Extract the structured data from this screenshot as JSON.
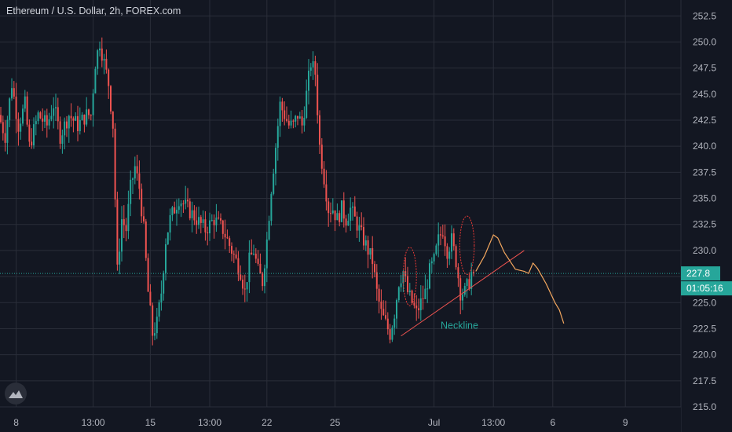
{
  "header": {
    "title": "Ethereum / U.S. Dollar, 2h, FOREX.com"
  },
  "colors": {
    "background": "#131722",
    "grid": "#2a2e39",
    "up": "#26a69a",
    "down": "#ef5350",
    "price_line": "#26a69a",
    "drawing_red": "#e53935",
    "drawing_orange": "#f5a85f",
    "text": "#b2b5be"
  },
  "logo": {
    "icon": "tradingview-logo-icon"
  },
  "chart_data": {
    "type": "candlestick",
    "title": "Ethereum / U.S. Dollar, 2h, FOREX.com",
    "ylim": [
      215.0,
      253.5
    ],
    "y_ticks": [
      {
        "value": 252.5,
        "label": "252.5"
      },
      {
        "value": 250.0,
        "label": "250.0"
      },
      {
        "value": 247.5,
        "label": "247.5"
      },
      {
        "value": 245.0,
        "label": "245.0"
      },
      {
        "value": 242.5,
        "label": "242.5"
      },
      {
        "value": 240.0,
        "label": "240.0"
      },
      {
        "value": 237.5,
        "label": "237.5"
      },
      {
        "value": 235.0,
        "label": "235.0"
      },
      {
        "value": 232.5,
        "label": "232.5"
      },
      {
        "value": 230.0,
        "label": "230.0"
      },
      {
        "value": 227.5,
        "label": "227.5"
      },
      {
        "value": 225.0,
        "label": "225.0"
      },
      {
        "value": 222.5,
        "label": "222.5"
      },
      {
        "value": 220.0,
        "label": "220.0"
      },
      {
        "value": 217.5,
        "label": "217.5"
      },
      {
        "value": 215.0,
        "label": "215.0"
      }
    ],
    "x_ticks": [
      {
        "bar": 7,
        "label": "8"
      },
      {
        "bar": 42,
        "label": "13:00"
      },
      {
        "bar": 68,
        "label": "15"
      },
      {
        "bar": 95,
        "label": "13:00"
      },
      {
        "bar": 121,
        "label": "22"
      },
      {
        "bar": 152,
        "label": "25"
      },
      {
        "bar": 197,
        "label": "Jul"
      },
      {
        "bar": 224,
        "label": "13:00"
      },
      {
        "bar": 251,
        "label": "6"
      },
      {
        "bar": 284,
        "label": "9"
      }
    ],
    "bar_count": 336,
    "current_price": 227.8,
    "current_price_label": "227.8",
    "countdown_label": "01:05:16",
    "anchors": [
      [
        0,
        243
      ],
      [
        3,
        241
      ],
      [
        6,
        246
      ],
      [
        9,
        242
      ],
      [
        12,
        244
      ],
      [
        14,
        240
      ],
      [
        18,
        243
      ],
      [
        22,
        242
      ],
      [
        25,
        244
      ],
      [
        28,
        241
      ],
      [
        32,
        243
      ],
      [
        36,
        242
      ],
      [
        40,
        243
      ],
      [
        42,
        243
      ],
      [
        44,
        248
      ],
      [
        46,
        250
      ],
      [
        48,
        248
      ],
      [
        50,
        246
      ],
      [
        52,
        242
      ],
      [
        54,
        228
      ],
      [
        56,
        233
      ],
      [
        58,
        232
      ],
      [
        60,
        236
      ],
      [
        62,
        238
      ],
      [
        64,
        236
      ],
      [
        66,
        232
      ],
      [
        68,
        226
      ],
      [
        70,
        222
      ],
      [
        72,
        223
      ],
      [
        74,
        226
      ],
      [
        76,
        231
      ],
      [
        78,
        233
      ],
      [
        82,
        235
      ],
      [
        86,
        234
      ],
      [
        90,
        233
      ],
      [
        94,
        232
      ],
      [
        98,
        233
      ],
      [
        102,
        232
      ],
      [
        106,
        230
      ],
      [
        110,
        228
      ],
      [
        112,
        226
      ],
      [
        114,
        229
      ],
      [
        116,
        230
      ],
      [
        118,
        228
      ],
      [
        120,
        227
      ],
      [
        122,
        231
      ],
      [
        124,
        236
      ],
      [
        126,
        240
      ],
      [
        128,
        244
      ],
      [
        130,
        243
      ],
      [
        132,
        242
      ],
      [
        134,
        242
      ],
      [
        136,
        243
      ],
      [
        138,
        242
      ],
      [
        140,
        245
      ],
      [
        142,
        248
      ],
      [
        144,
        247
      ],
      [
        146,
        240
      ],
      [
        148,
        237
      ],
      [
        150,
        234
      ],
      [
        152,
        234
      ],
      [
        154,
        233
      ],
      [
        156,
        234
      ],
      [
        158,
        233
      ],
      [
        160,
        234
      ],
      [
        162,
        233
      ],
      [
        164,
        232
      ],
      [
        166,
        231
      ],
      [
        168,
        230
      ],
      [
        170,
        229
      ],
      [
        172,
        226
      ],
      [
        174,
        224
      ],
      [
        176,
        223
      ],
      [
        178,
        222
      ],
      [
        180,
        224
      ],
      [
        182,
        227
      ],
      [
        184,
        228
      ],
      [
        186,
        226
      ],
      [
        188,
        225
      ],
      [
        190,
        224
      ],
      [
        192,
        225
      ],
      [
        194,
        226
      ],
      [
        196,
        228
      ],
      [
        198,
        229
      ],
      [
        200,
        231
      ],
      [
        202,
        232
      ],
      [
        204,
        230
      ],
      [
        206,
        231
      ],
      [
        208,
        229
      ],
      [
        210,
        226
      ],
      [
        212,
        226
      ],
      [
        214,
        227
      ],
      [
        215,
        227.8
      ]
    ],
    "annotations": [
      {
        "type": "text",
        "label": "Neckline",
        "color": "#26a69a",
        "bar": 200,
        "price": 222.8
      },
      {
        "type": "trendline",
        "label": "neckline-trend",
        "color": "#ef5350",
        "from": {
          "bar": 182,
          "price": 221.8
        },
        "to": {
          "bar": 238,
          "price": 230.0
        }
      },
      {
        "type": "ellipse",
        "label": "left-shoulder",
        "color": "#e53935",
        "center": {
          "bar": 186,
          "price": 227.5
        },
        "bar_radius": 3,
        "price_radius": 2.8
      },
      {
        "type": "ellipse",
        "label": "right-shoulder",
        "color": "#e53935",
        "center": {
          "bar": 212,
          "price": 230.5
        },
        "bar_radius": 3.3,
        "price_radius": 2.8
      },
      {
        "type": "projection",
        "label": "forecast-path",
        "color": "#f5a85f",
        "points": [
          [
            216,
            228
          ],
          [
            220,
            229.5
          ],
          [
            222,
            230.5
          ],
          [
            224,
            231.5
          ],
          [
            226,
            231.2
          ],
          [
            229,
            229.8
          ],
          [
            234,
            228.2
          ],
          [
            238,
            228
          ],
          [
            240,
            227.8
          ],
          [
            242,
            228.8
          ],
          [
            244,
            228.3
          ],
          [
            248,
            226.8
          ],
          [
            252,
            225.0
          ],
          [
            254,
            224.3
          ],
          [
            256,
            223
          ]
        ]
      }
    ]
  }
}
